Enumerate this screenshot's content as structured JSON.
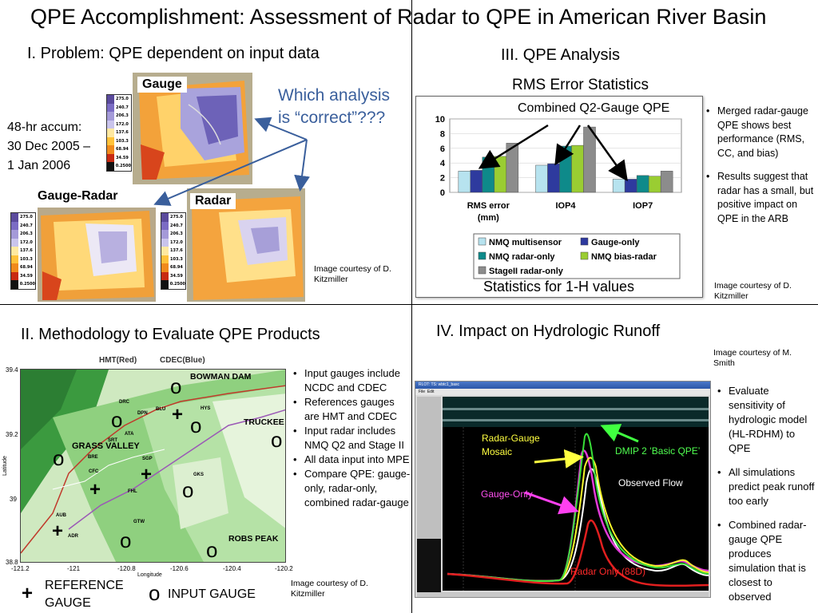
{
  "title": "QPE Accomplishment: Assessment of Radar to QPE in American River Basin",
  "section1": {
    "heading": "I. Problem:  QPE dependent on input data",
    "accum_text": [
      "48-hr accum:",
      "30 Dec 2005 –",
      "1 Jan 2006"
    ],
    "question": [
      "Which analysis",
      "is “correct”???"
    ],
    "maps": {
      "gauge": "Gauge",
      "gauge_radar": "Gauge-Radar",
      "radar": "Radar"
    },
    "legend_values": [
      "275.0",
      "240.7",
      "206.3",
      "172.0",
      "137.6",
      "103.3",
      "68.94",
      "34.59",
      "0.2500"
    ],
    "credit": [
      "Image courtesy of D.",
      "Kitzmiller"
    ]
  },
  "section3": {
    "heading": "III. QPE Analysis",
    "subheading": "RMS Error Statistics",
    "annotation": "Combined Q2-Gauge QPE",
    "caption": "Statistics for 1-H values",
    "bullets": [
      "Merged radar-gauge QPE shows best performance (RMS, CC, and bias)",
      "Results suggest that radar has a small, but positive impact on QPE in the ARB"
    ],
    "credit": [
      "Image courtesy of D.",
      "Kitzmiller"
    ]
  },
  "chart_data": {
    "type": "bar",
    "categories": [
      "RMS error (mm)",
      "IOP4",
      "IOP7"
    ],
    "ylim": [
      0,
      10
    ],
    "yticks": [
      "0",
      "2",
      "4",
      "6",
      "8",
      "10"
    ],
    "series": [
      {
        "name": "NMQ multisensor",
        "color": "#b7e3ef",
        "values": [
          2.9,
          3.7,
          1.8
        ]
      },
      {
        "name": "Gauge-only",
        "color": "#2e3a9e",
        "values": [
          3.0,
          3.9,
          1.8
        ]
      },
      {
        "name": "NMQ radar-only",
        "color": "#0e8a8a",
        "values": [
          4.8,
          6.3,
          2.3
        ]
      },
      {
        "name": "NMQ bias-radar",
        "color": "#9acd32",
        "values": [
          4.9,
          6.4,
          2.2
        ]
      },
      {
        "name": "StageII radar-only",
        "color": "#8c8c8c",
        "values": [
          6.7,
          8.9,
          2.9
        ]
      }
    ]
  },
  "section2": {
    "heading": "II. Methodology to Evaluate QPE Products",
    "map_titles": [
      "HMT(Red)",
      "CDEC(Blue)"
    ],
    "map_places": [
      "BOWMAN DAM",
      "TRUCKEE",
      "GRASS VALLEY",
      "ROBS PEAK"
    ],
    "map_stations": [
      "DRC",
      "DPN",
      "BLU",
      "HYS",
      "ATA",
      "SRT",
      "BRE",
      "SGP",
      "CFC",
      "GKS",
      "FHL",
      "AUB",
      "GTW",
      "ADR"
    ],
    "lat_ticks": [
      "39.4",
      "39.2",
      "39",
      "38.8"
    ],
    "lon_ticks": [
      "-121.2",
      "-121",
      "-120.8",
      "-120.6",
      "-120.4",
      "-120.2"
    ],
    "lat_label": "Latitude",
    "lon_label": "Longitude",
    "legend": {
      "reference_symbol": "+",
      "reference": [
        "REFERENCE",
        "GAUGE"
      ],
      "input_symbol": "o",
      "input": "INPUT GAUGE"
    },
    "bullets": [
      "Input gauges include NCDC and CDEC",
      "References gauges are HMT and CDEC",
      "Input radar includes NMQ Q2 and Stage II",
      "All data input into MPE",
      "Compare QPE: gauge-only, radar-only, combined radar-gauge"
    ],
    "credit": [
      "Image courtesy of D.",
      "Kitzmiller"
    ]
  },
  "section4": {
    "heading": "IV. Impact on Hydrologic Runoff",
    "credit": [
      "Image courtesy of M.",
      "Smith"
    ],
    "window_title": "RLOT: TS: wbtc1_basc",
    "menu": [
      "File",
      "Edit"
    ],
    "labels": {
      "radar_gauge": [
        "Radar-Gauge",
        "Mosaic"
      ],
      "dmip": "DMIP 2 ʻBasic QPEʼ",
      "observed": "Observed Flow",
      "gauge_only": "Gauge-Only",
      "radar_only": "Radar Only (88D)"
    },
    "bullets": [
      "Evaluate sensitivity of hydrologic model (HL-RDHM) to QPE",
      "All simulations predict peak runoff too early",
      "Combined radar-gauge QPE produces simulation that is closest to observed"
    ]
  }
}
